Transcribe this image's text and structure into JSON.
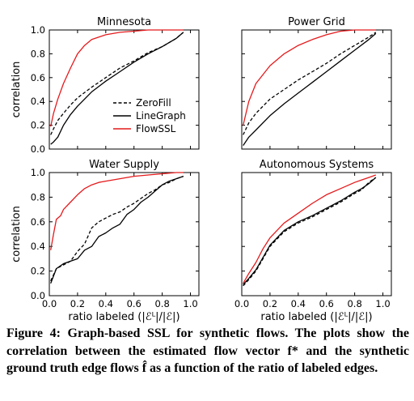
{
  "chart_data": [
    {
      "type": "line",
      "title": "Minnesota",
      "xlim": [
        0,
        1.0
      ],
      "ylim": [
        0,
        1.0
      ],
      "xticks": [
        "0.0",
        "0.2",
        "0.4",
        "0.6",
        "0.8",
        "1.0"
      ],
      "yticks": [
        "0.0",
        "0.2",
        "0.4",
        "0.6",
        "0.8",
        "1.0"
      ],
      "show_xticklabels": false,
      "show_yticklabels": true,
      "ylabel": "correlation",
      "xlabel": "",
      "legend": "center-right",
      "series": [
        {
          "name": "ZeroFill",
          "style": "dashed",
          "color": "#000000",
          "x": [
            0.01,
            0.03,
            0.06,
            0.1,
            0.15,
            0.2,
            0.3,
            0.4,
            0.5,
            0.6,
            0.7,
            0.8,
            0.9,
            0.95
          ],
          "y": [
            0.12,
            0.17,
            0.24,
            0.3,
            0.37,
            0.43,
            0.52,
            0.6,
            0.68,
            0.74,
            0.81,
            0.86,
            0.93,
            0.98
          ]
        },
        {
          "name": "LineGraph",
          "style": "solid",
          "color": "#000000",
          "x": [
            0.01,
            0.03,
            0.06,
            0.1,
            0.15,
            0.2,
            0.3,
            0.4,
            0.5,
            0.6,
            0.7,
            0.8,
            0.9,
            0.95
          ],
          "y": [
            0.04,
            0.06,
            0.1,
            0.2,
            0.29,
            0.36,
            0.48,
            0.57,
            0.65,
            0.73,
            0.8,
            0.86,
            0.93,
            0.98
          ]
        },
        {
          "name": "FlowSSL",
          "style": "solid",
          "color": "#e41a1c",
          "x": [
            0.01,
            0.03,
            0.06,
            0.1,
            0.15,
            0.2,
            0.25,
            0.3,
            0.4,
            0.5,
            0.6,
            0.7,
            0.8,
            0.9,
            0.95
          ],
          "y": [
            0.19,
            0.3,
            0.42,
            0.55,
            0.68,
            0.8,
            0.87,
            0.92,
            0.96,
            0.98,
            0.99,
            1.0,
            1.0,
            1.0,
            1.0
          ]
        }
      ]
    },
    {
      "type": "line",
      "title": "Power Grid",
      "xlim": [
        0,
        1.0
      ],
      "ylim": [
        0,
        1.0
      ],
      "xticks": [
        "0.0",
        "0.2",
        "0.4",
        "0.6",
        "0.8",
        "1.0"
      ],
      "yticks": [
        "0.0",
        "0.2",
        "0.4",
        "0.6",
        "0.8",
        "1.0"
      ],
      "show_xticklabels": false,
      "show_yticklabels": false,
      "series": [
        {
          "name": "ZeroFill",
          "style": "dashed",
          "color": "#000000",
          "x": [
            0.01,
            0.05,
            0.1,
            0.2,
            0.3,
            0.4,
            0.5,
            0.6,
            0.7,
            0.8,
            0.9,
            0.95
          ],
          "y": [
            0.12,
            0.22,
            0.3,
            0.42,
            0.5,
            0.58,
            0.65,
            0.72,
            0.8,
            0.87,
            0.94,
            0.98
          ]
        },
        {
          "name": "LineGraph",
          "style": "solid",
          "color": "#000000",
          "x": [
            0.01,
            0.05,
            0.1,
            0.2,
            0.3,
            0.4,
            0.5,
            0.6,
            0.7,
            0.8,
            0.9,
            0.95
          ],
          "y": [
            0.03,
            0.1,
            0.16,
            0.28,
            0.38,
            0.47,
            0.56,
            0.65,
            0.74,
            0.83,
            0.92,
            0.97
          ]
        },
        {
          "name": "FlowSSL",
          "style": "solid",
          "color": "#e41a1c",
          "x": [
            0.01,
            0.05,
            0.1,
            0.2,
            0.3,
            0.4,
            0.5,
            0.6,
            0.7,
            0.8,
            0.9,
            0.95
          ],
          "y": [
            0.2,
            0.4,
            0.55,
            0.7,
            0.8,
            0.87,
            0.92,
            0.96,
            0.99,
            1.0,
            1.0,
            1.0
          ]
        }
      ]
    },
    {
      "type": "line",
      "title": "Water Supply",
      "xlim": [
        0,
        1.0
      ],
      "ylim": [
        0,
        1.0
      ],
      "xticks": [
        "0.0",
        "0.2",
        "0.4",
        "0.6",
        "0.8",
        "1.0"
      ],
      "yticks": [
        "0.0",
        "0.2",
        "0.4",
        "0.6",
        "0.8",
        "1.0"
      ],
      "show_xticklabels": true,
      "show_yticklabels": true,
      "ylabel": "correlation",
      "xlabel": "ratio labeled (|ℰᴸ|/|ℰ|)",
      "series": [
        {
          "name": "ZeroFill",
          "style": "dashed",
          "color": "#000000",
          "x": [
            0.01,
            0.05,
            0.1,
            0.15,
            0.2,
            0.25,
            0.3,
            0.35,
            0.4,
            0.45,
            0.5,
            0.55,
            0.6,
            0.65,
            0.7,
            0.75,
            0.8,
            0.85,
            0.9,
            0.95
          ],
          "y": [
            0.12,
            0.22,
            0.25,
            0.28,
            0.36,
            0.42,
            0.55,
            0.6,
            0.63,
            0.66,
            0.68,
            0.72,
            0.75,
            0.79,
            0.83,
            0.86,
            0.9,
            0.92,
            0.95,
            0.97
          ]
        },
        {
          "name": "LineGraph",
          "style": "solid",
          "color": "#000000",
          "x": [
            0.01,
            0.05,
            0.1,
            0.15,
            0.2,
            0.25,
            0.3,
            0.35,
            0.4,
            0.45,
            0.5,
            0.55,
            0.6,
            0.65,
            0.7,
            0.75,
            0.8,
            0.85,
            0.9,
            0.95
          ],
          "y": [
            0.1,
            0.22,
            0.26,
            0.28,
            0.3,
            0.37,
            0.4,
            0.48,
            0.51,
            0.55,
            0.58,
            0.66,
            0.7,
            0.76,
            0.8,
            0.85,
            0.9,
            0.93,
            0.95,
            0.97
          ]
        },
        {
          "name": "FlowSSL",
          "style": "solid",
          "color": "#e41a1c",
          "x": [
            0.01,
            0.03,
            0.05,
            0.08,
            0.1,
            0.15,
            0.2,
            0.25,
            0.3,
            0.35,
            0.4,
            0.5,
            0.6,
            0.7,
            0.8,
            0.9,
            0.95
          ],
          "y": [
            0.37,
            0.5,
            0.62,
            0.65,
            0.7,
            0.76,
            0.82,
            0.87,
            0.9,
            0.92,
            0.93,
            0.95,
            0.97,
            0.98,
            0.99,
            1.0,
            1.0
          ]
        }
      ]
    },
    {
      "type": "line",
      "title": "Autonomous Systems",
      "xlim": [
        0,
        1.0
      ],
      "ylim": [
        0,
        1.0
      ],
      "xticks": [
        "0.0",
        "0.2",
        "0.4",
        "0.6",
        "0.8",
        "1.0"
      ],
      "yticks": [
        "0.0",
        "0.2",
        "0.4",
        "0.6",
        "0.8",
        "1.0"
      ],
      "show_xticklabels": true,
      "show_yticklabels": false,
      "xlabel": "ratio labeled (|ℰᴸ|/|ℰ|)",
      "series": [
        {
          "name": "ZeroFill",
          "style": "dashed",
          "color": "#000000",
          "x": [
            0.01,
            0.05,
            0.1,
            0.15,
            0.2,
            0.25,
            0.3,
            0.4,
            0.5,
            0.6,
            0.7,
            0.8,
            0.85,
            0.9,
            0.95
          ],
          "y": [
            0.08,
            0.13,
            0.2,
            0.3,
            0.4,
            0.46,
            0.52,
            0.59,
            0.64,
            0.7,
            0.76,
            0.83,
            0.86,
            0.92,
            0.96
          ]
        },
        {
          "name": "LineGraph",
          "style": "solid",
          "color": "#000000",
          "x": [
            0.01,
            0.05,
            0.1,
            0.15,
            0.2,
            0.25,
            0.3,
            0.4,
            0.5,
            0.6,
            0.7,
            0.8,
            0.85,
            0.9,
            0.95
          ],
          "y": [
            0.09,
            0.14,
            0.21,
            0.31,
            0.41,
            0.47,
            0.53,
            0.6,
            0.65,
            0.71,
            0.77,
            0.84,
            0.87,
            0.91,
            0.96
          ]
        },
        {
          "name": "FlowSSL",
          "style": "solid",
          "color": "#e41a1c",
          "x": [
            0.01,
            0.05,
            0.1,
            0.15,
            0.2,
            0.25,
            0.3,
            0.4,
            0.5,
            0.6,
            0.7,
            0.8,
            0.85,
            0.9,
            0.95
          ],
          "y": [
            0.1,
            0.18,
            0.27,
            0.38,
            0.47,
            0.53,
            0.59,
            0.67,
            0.75,
            0.82,
            0.87,
            0.92,
            0.94,
            0.96,
            0.98
          ]
        }
      ]
    }
  ],
  "caption": {
    "figure_label": "Figure 4:",
    "text": "Graph-based SSL for synthetic flows. The plots show the correlation between the estimated flow vector f* and the synthetic ground truth edge flows f̂ as a function of the ratio of labeled edges."
  }
}
